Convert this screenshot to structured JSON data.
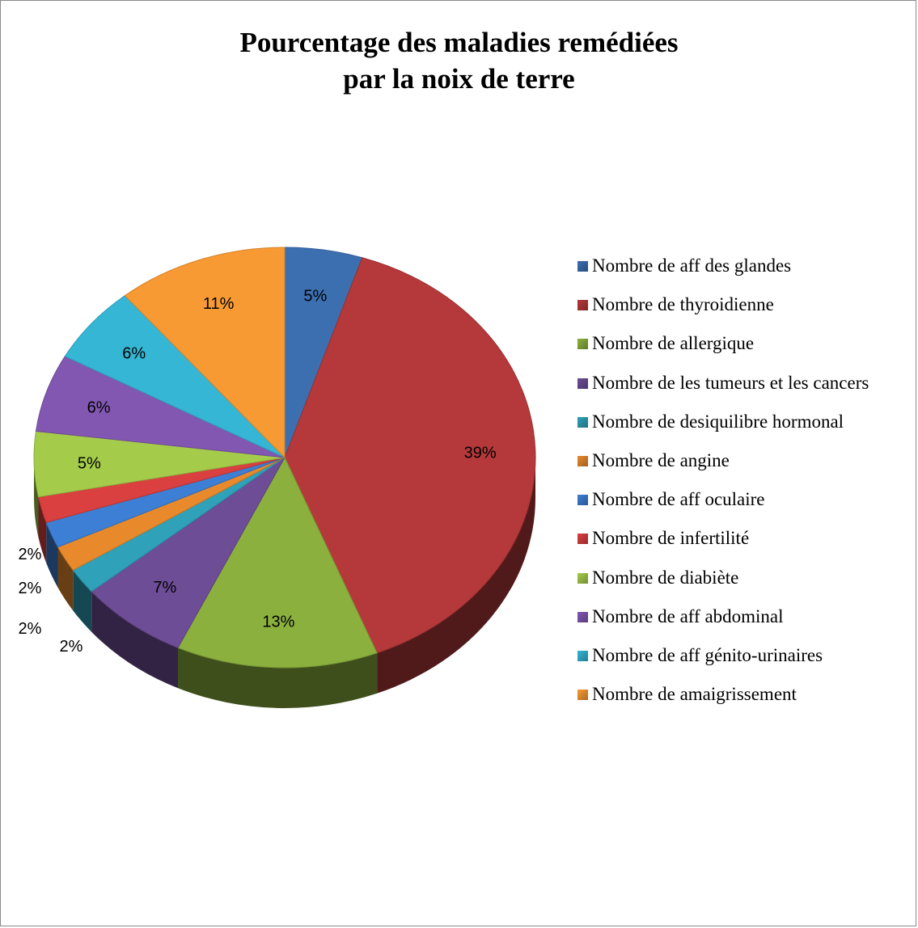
{
  "chart_data": {
    "type": "pie",
    "title": [
      "Pourcentage des maladies remédiées",
      "par la noix de terre"
    ],
    "legend_position": "right",
    "slices": [
      {
        "name": "Nombre de aff des glandes",
        "value": 5,
        "label": "5%",
        "color": "#3c6fb0"
      },
      {
        "name": "Nombre de thyroidienne",
        "value": 39,
        "label": "39%",
        "color": "#b5393a"
      },
      {
        "name": "Nombre de allergique",
        "value": 13,
        "label": "13%",
        "color": "#8bb03e"
      },
      {
        "name": "Nombre de les tumeurs et les cancers",
        "value": 7,
        "label": "7%",
        "color": "#6e4d97"
      },
      {
        "name": "Nombre de desiquilibre hormonal",
        "value": 2,
        "label": "2%",
        "color": "#2fa1b8"
      },
      {
        "name": "Nombre de angine",
        "value": 2,
        "label": "2%",
        "color": "#e88a2c"
      },
      {
        "name": "Nombre de aff oculaire",
        "value": 2,
        "label": "2%",
        "color": "#3d7fd4"
      },
      {
        "name": "Nombre de infertilité",
        "value": 2,
        "label": "2%",
        "color": "#d9403f"
      },
      {
        "name": "Nombre de diabiète",
        "value": 5,
        "label": "5%",
        "color": "#a4cc4a"
      },
      {
        "name": "Nombre de aff abdominal",
        "value": 6,
        "label": "6%",
        "color": "#8257b2"
      },
      {
        "name": "Nombre de aff génito-urinaires",
        "value": 6,
        "label": "6%",
        "color": "#35b6d4"
      },
      {
        "name": "Nombre de amaigrissement",
        "value": 11,
        "label": "11%",
        "color": "#f79a33"
      }
    ]
  }
}
